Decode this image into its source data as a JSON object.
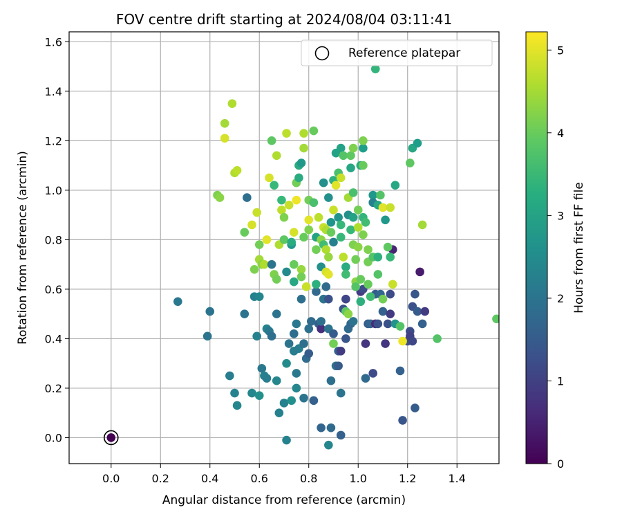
{
  "chart_data": {
    "type": "scatter",
    "title": "FOV centre drift starting at 2024/08/04 03:11:41",
    "xlabel": "Angular distance from reference (arcmin)",
    "ylabel": "Rotation from reference (arcmin)",
    "xlim": [
      -0.17,
      1.57
    ],
    "ylim": [
      -0.105,
      1.64
    ],
    "xticks": [
      "0.0",
      "0.2",
      "0.4",
      "0.6",
      "0.8",
      "1.0",
      "1.2",
      "1.4"
    ],
    "yticks": [
      "0.0",
      "0.2",
      "0.4",
      "0.6",
      "0.8",
      "1.0",
      "1.2",
      "1.4",
      "1.6"
    ],
    "grid": true,
    "legend": {
      "placement": "top-right",
      "entries": [
        "Reference platepar"
      ]
    },
    "colorbar": {
      "label": "Hours from first FF file",
      "range": [
        0,
        5.22
      ],
      "ticks": [
        "0",
        "1",
        "2",
        "3",
        "4",
        "5"
      ],
      "colormap": "viridis"
    },
    "reference_point": {
      "x": 0.0,
      "y": 0.0,
      "c": 0.0
    },
    "points": [
      {
        "x": 0.27,
        "y": 0.55,
        "c": 2.1
      },
      {
        "x": 0.4,
        "y": 0.51,
        "c": 2.0
      },
      {
        "x": 0.39,
        "y": 0.41,
        "c": 2.0
      },
      {
        "x": 0.48,
        "y": 0.25,
        "c": 2.2
      },
      {
        "x": 0.5,
        "y": 0.18,
        "c": 2.3
      },
      {
        "x": 0.51,
        "y": 0.13,
        "c": 2.4
      },
      {
        "x": 0.54,
        "y": 0.5,
        "c": 2.0
      },
      {
        "x": 0.55,
        "y": 0.97,
        "c": 1.9
      },
      {
        "x": 0.57,
        "y": 0.18,
        "c": 2.4
      },
      {
        "x": 0.58,
        "y": 0.57,
        "c": 2.3
      },
      {
        "x": 0.6,
        "y": 0.57,
        "c": 2.4
      },
      {
        "x": 0.59,
        "y": 0.41,
        "c": 2.3
      },
      {
        "x": 0.6,
        "y": 0.17,
        "c": 2.6
      },
      {
        "x": 0.61,
        "y": 0.28,
        "c": 2.1
      },
      {
        "x": 0.62,
        "y": 0.25,
        "c": 2.3
      },
      {
        "x": 0.63,
        "y": 0.24,
        "c": 2.2
      },
      {
        "x": 0.63,
        "y": 0.44,
        "c": 2.3
      },
      {
        "x": 0.64,
        "y": 0.43,
        "c": 2.1
      },
      {
        "x": 0.65,
        "y": 0.41,
        "c": 1.9
      },
      {
        "x": 0.67,
        "y": 0.23,
        "c": 2.4
      },
      {
        "x": 0.67,
        "y": 0.5,
        "c": 2.0
      },
      {
        "x": 0.68,
        "y": 0.1,
        "c": 2.3
      },
      {
        "x": 0.7,
        "y": 0.14,
        "c": 2.3
      },
      {
        "x": 0.71,
        "y": -0.01,
        "c": 2.3
      },
      {
        "x": 0.71,
        "y": 0.3,
        "c": 2.5
      },
      {
        "x": 0.72,
        "y": 0.38,
        "c": 2.0
      },
      {
        "x": 0.73,
        "y": 0.15,
        "c": 2.6
      },
      {
        "x": 0.74,
        "y": 0.42,
        "c": 1.9
      },
      {
        "x": 0.74,
        "y": 0.35,
        "c": 2.2
      },
      {
        "x": 0.75,
        "y": 0.26,
        "c": 2.1
      },
      {
        "x": 0.75,
        "y": 0.2,
        "c": 2.4
      },
      {
        "x": 0.75,
        "y": 0.46,
        "c": 2.1
      },
      {
        "x": 0.76,
        "y": 0.36,
        "c": 2.2
      },
      {
        "x": 0.77,
        "y": 0.56,
        "c": 1.9
      },
      {
        "x": 0.78,
        "y": 0.38,
        "c": 1.9
      },
      {
        "x": 0.78,
        "y": 0.16,
        "c": 2.0
      },
      {
        "x": 0.79,
        "y": 0.32,
        "c": 1.8
      },
      {
        "x": 0.8,
        "y": 0.34,
        "c": 1.5
      },
      {
        "x": 0.8,
        "y": 0.44,
        "c": 1.9
      },
      {
        "x": 0.81,
        "y": 0.47,
        "c": 1.8
      },
      {
        "x": 0.82,
        "y": 0.15,
        "c": 1.6
      },
      {
        "x": 0.83,
        "y": 0.59,
        "c": 1.8
      },
      {
        "x": 0.84,
        "y": 0.46,
        "c": 1.6
      },
      {
        "x": 0.85,
        "y": 0.44,
        "c": 0.7
      },
      {
        "x": 0.85,
        "y": 0.47,
        "c": 1.9
      },
      {
        "x": 0.85,
        "y": 0.04,
        "c": 1.7
      },
      {
        "x": 0.86,
        "y": 0.56,
        "c": 2.0
      },
      {
        "x": 0.87,
        "y": 0.61,
        "c": 1.8
      },
      {
        "x": 0.88,
        "y": 0.56,
        "c": 1.3
      },
      {
        "x": 0.88,
        "y": 0.44,
        "c": 2.0
      },
      {
        "x": 0.89,
        "y": 0.23,
        "c": 1.9
      },
      {
        "x": 0.89,
        "y": 0.04,
        "c": 1.8
      },
      {
        "x": 0.88,
        "y": -0.03,
        "c": 2.4
      },
      {
        "x": 0.9,
        "y": 0.42,
        "c": 1.5
      },
      {
        "x": 0.91,
        "y": 0.29,
        "c": 1.9
      },
      {
        "x": 0.92,
        "y": 0.29,
        "c": 1.5
      },
      {
        "x": 0.92,
        "y": 0.35,
        "c": 1.6
      },
      {
        "x": 0.93,
        "y": 0.18,
        "c": 2.0
      },
      {
        "x": 0.93,
        "y": 0.01,
        "c": 1.6
      },
      {
        "x": 0.93,
        "y": 0.35,
        "c": 0.9
      },
      {
        "x": 0.94,
        "y": 0.52,
        "c": 1.3
      },
      {
        "x": 0.95,
        "y": 0.4,
        "c": 1.4
      },
      {
        "x": 0.95,
        "y": 0.56,
        "c": 1.1
      },
      {
        "x": 0.96,
        "y": 0.44,
        "c": 1.8
      },
      {
        "x": 0.97,
        "y": 0.46,
        "c": 1.7
      },
      {
        "x": 0.98,
        "y": 0.47,
        "c": 2.0
      },
      {
        "x": 1.01,
        "y": 0.59,
        "c": 0.9
      },
      {
        "x": 1.02,
        "y": 0.6,
        "c": 1.2
      },
      {
        "x": 1.03,
        "y": 0.38,
        "c": 0.8
      },
      {
        "x": 1.03,
        "y": 0.24,
        "c": 1.8
      },
      {
        "x": 1.04,
        "y": 0.46,
        "c": 1.5
      },
      {
        "x": 1.05,
        "y": 0.46,
        "c": 1.7
      },
      {
        "x": 1.06,
        "y": 0.26,
        "c": 1.2
      },
      {
        "x": 1.07,
        "y": 0.46,
        "c": 0.6
      },
      {
        "x": 1.07,
        "y": 0.58,
        "c": 1.5
      },
      {
        "x": 1.08,
        "y": 0.46,
        "c": 1.3
      },
      {
        "x": 1.09,
        "y": 0.58,
        "c": 1.7
      },
      {
        "x": 1.1,
        "y": 0.51,
        "c": 1.6
      },
      {
        "x": 1.11,
        "y": 0.38,
        "c": 0.8
      },
      {
        "x": 1.12,
        "y": 0.46,
        "c": 1.3
      },
      {
        "x": 1.13,
        "y": 0.5,
        "c": 0.9
      },
      {
        "x": 1.13,
        "y": 0.58,
        "c": 1.2
      },
      {
        "x": 1.14,
        "y": 0.76,
        "c": 0.5
      },
      {
        "x": 1.15,
        "y": 0.46,
        "c": 2.7
      },
      {
        "x": 1.17,
        "y": 0.27,
        "c": 1.6
      },
      {
        "x": 1.18,
        "y": 0.07,
        "c": 1.4
      },
      {
        "x": 1.2,
        "y": 0.39,
        "c": 1.3
      },
      {
        "x": 1.21,
        "y": 0.43,
        "c": 1.2
      },
      {
        "x": 1.21,
        "y": 0.41,
        "c": 1.0
      },
      {
        "x": 1.22,
        "y": 0.53,
        "c": 1.3
      },
      {
        "x": 1.22,
        "y": 0.39,
        "c": 1.1
      },
      {
        "x": 1.23,
        "y": 0.58,
        "c": 1.4
      },
      {
        "x": 1.23,
        "y": 0.12,
        "c": 1.5
      },
      {
        "x": 1.24,
        "y": 0.51,
        "c": 1.5
      },
      {
        "x": 1.25,
        "y": 0.67,
        "c": 0.4
      },
      {
        "x": 1.26,
        "y": 0.46,
        "c": 1.6
      },
      {
        "x": 1.27,
        "y": 0.51,
        "c": 0.9
      },
      {
        "x": 0.43,
        "y": 0.98,
        "c": 4.2
      },
      {
        "x": 0.44,
        "y": 0.97,
        "c": 4.3
      },
      {
        "x": 0.46,
        "y": 1.27,
        "c": 4.5
      },
      {
        "x": 0.46,
        "y": 1.21,
        "c": 4.9
      },
      {
        "x": 0.49,
        "y": 1.35,
        "c": 4.6
      },
      {
        "x": 0.5,
        "y": 1.07,
        "c": 4.6
      },
      {
        "x": 0.51,
        "y": 1.08,
        "c": 4.7
      },
      {
        "x": 0.54,
        "y": 0.83,
        "c": 4.0
      },
      {
        "x": 0.57,
        "y": 0.86,
        "c": 4.9
      },
      {
        "x": 0.58,
        "y": 0.68,
        "c": 4.2
      },
      {
        "x": 0.59,
        "y": 0.91,
        "c": 4.8
      },
      {
        "x": 0.6,
        "y": 0.78,
        "c": 4.1
      },
      {
        "x": 0.6,
        "y": 0.72,
        "c": 4.5
      },
      {
        "x": 0.61,
        "y": 0.7,
        "c": 4.3
      },
      {
        "x": 0.62,
        "y": 0.7,
        "c": 4.6
      },
      {
        "x": 0.63,
        "y": 0.8,
        "c": 5.0
      },
      {
        "x": 0.64,
        "y": 1.05,
        "c": 4.9
      },
      {
        "x": 0.65,
        "y": 1.2,
        "c": 3.9
      },
      {
        "x": 0.65,
        "y": 0.7,
        "c": 2.0
      },
      {
        "x": 0.66,
        "y": 1.02,
        "c": 3.5
      },
      {
        "x": 0.66,
        "y": 0.66,
        "c": 4.2
      },
      {
        "x": 0.67,
        "y": 1.14,
        "c": 4.6
      },
      {
        "x": 0.67,
        "y": 0.64,
        "c": 4.1
      },
      {
        "x": 0.68,
        "y": 0.78,
        "c": 4.6
      },
      {
        "x": 0.69,
        "y": 0.92,
        "c": 4.7
      },
      {
        "x": 0.69,
        "y": 0.96,
        "c": 3.5
      },
      {
        "x": 0.7,
        "y": 0.8,
        "c": 3.9
      },
      {
        "x": 0.7,
        "y": 0.89,
        "c": 4.2
      },
      {
        "x": 0.71,
        "y": 1.23,
        "c": 4.7
      },
      {
        "x": 0.71,
        "y": 0.67,
        "c": 2.5
      },
      {
        "x": 0.72,
        "y": 0.94,
        "c": 4.8
      },
      {
        "x": 0.73,
        "y": 0.78,
        "c": 2.7
      },
      {
        "x": 0.73,
        "y": 0.79,
        "c": 3.2
      },
      {
        "x": 0.74,
        "y": 0.83,
        "c": 4.9
      },
      {
        "x": 0.74,
        "y": 0.7,
        "c": 4.0
      },
      {
        "x": 0.74,
        "y": 0.63,
        "c": 3.1
      },
      {
        "x": 0.75,
        "y": 1.03,
        "c": 4.1
      },
      {
        "x": 0.75,
        "y": 0.96,
        "c": 5.1
      },
      {
        "x": 0.76,
        "y": 1.1,
        "c": 3.2
      },
      {
        "x": 0.76,
        "y": 1.05,
        "c": 3.2
      },
      {
        "x": 0.77,
        "y": 1.11,
        "c": 2.8
      },
      {
        "x": 0.77,
        "y": 0.68,
        "c": 4.4
      },
      {
        "x": 0.77,
        "y": 0.65,
        "c": 4.1
      },
      {
        "x": 0.78,
        "y": 0.81,
        "c": 4.0
      },
      {
        "x": 0.78,
        "y": 1.17,
        "c": 4.5
      },
      {
        "x": 0.78,
        "y": 1.23,
        "c": 4.6
      },
      {
        "x": 0.79,
        "y": 0.61,
        "c": 4.8
      },
      {
        "x": 0.8,
        "y": 0.88,
        "c": 5.0
      },
      {
        "x": 0.8,
        "y": 0.84,
        "c": 4.2
      },
      {
        "x": 0.8,
        "y": 0.96,
        "c": 4.1
      },
      {
        "x": 0.82,
        "y": 0.95,
        "c": 3.7
      },
      {
        "x": 0.82,
        "y": 1.24,
        "c": 4.0
      },
      {
        "x": 0.83,
        "y": 0.81,
        "c": 3.0
      },
      {
        "x": 0.83,
        "y": 0.76,
        "c": 4.1
      },
      {
        "x": 0.83,
        "y": 0.62,
        "c": 3.3
      },
      {
        "x": 0.84,
        "y": 0.89,
        "c": 4.7
      },
      {
        "x": 0.85,
        "y": 0.69,
        "c": 2.6
      },
      {
        "x": 0.85,
        "y": 0.8,
        "c": 4.3
      },
      {
        "x": 0.86,
        "y": 1.03,
        "c": 2.6
      },
      {
        "x": 0.86,
        "y": 0.78,
        "c": 3.6
      },
      {
        "x": 0.86,
        "y": 0.85,
        "c": 4.8
      },
      {
        "x": 0.87,
        "y": 0.84,
        "c": 4.6
      },
      {
        "x": 0.87,
        "y": 0.76,
        "c": 4.6
      },
      {
        "x": 0.87,
        "y": 0.67,
        "c": 4.9
      },
      {
        "x": 0.88,
        "y": 0.97,
        "c": 2.6
      },
      {
        "x": 0.88,
        "y": 0.73,
        "c": 4.4
      },
      {
        "x": 0.88,
        "y": 0.66,
        "c": 5.0
      },
      {
        "x": 0.89,
        "y": 0.87,
        "c": 2.7
      },
      {
        "x": 0.89,
        "y": 0.83,
        "c": 4.0
      },
      {
        "x": 0.9,
        "y": 1.04,
        "c": 3.3
      },
      {
        "x": 0.9,
        "y": 0.92,
        "c": 4.8
      },
      {
        "x": 0.9,
        "y": 0.79,
        "c": 2.3
      },
      {
        "x": 0.9,
        "y": 0.38,
        "c": 4.1
      },
      {
        "x": 0.91,
        "y": 1.02,
        "c": 5.0
      },
      {
        "x": 0.91,
        "y": 1.15,
        "c": 3.0
      },
      {
        "x": 0.92,
        "y": 1.07,
        "c": 3.7
      },
      {
        "x": 0.92,
        "y": 0.89,
        "c": 2.7
      },
      {
        "x": 0.93,
        "y": 1.05,
        "c": 4.8
      },
      {
        "x": 0.93,
        "y": 0.81,
        "c": 3.5
      },
      {
        "x": 0.93,
        "y": 1.17,
        "c": 3.0
      },
      {
        "x": 0.93,
        "y": 0.86,
        "c": 3.5
      },
      {
        "x": 0.94,
        "y": 1.14,
        "c": 3.8
      },
      {
        "x": 0.94,
        "y": 0.73,
        "c": 4.7
      },
      {
        "x": 0.95,
        "y": 0.69,
        "c": 3.2
      },
      {
        "x": 0.95,
        "y": 0.66,
        "c": 3.6
      },
      {
        "x": 0.95,
        "y": 0.51,
        "c": 3.9
      },
      {
        "x": 0.96,
        "y": 0.97,
        "c": 4.5
      },
      {
        "x": 0.96,
        "y": 0.9,
        "c": 2.6
      },
      {
        "x": 0.96,
        "y": 0.5,
        "c": 4.3
      },
      {
        "x": 0.97,
        "y": 1.09,
        "c": 3.1
      },
      {
        "x": 0.97,
        "y": 1.14,
        "c": 3.9
      },
      {
        "x": 0.97,
        "y": 0.84,
        "c": 3.5
      },
      {
        "x": 0.98,
        "y": 1.17,
        "c": 4.2
      },
      {
        "x": 0.98,
        "y": 0.99,
        "c": 3.7
      },
      {
        "x": 0.98,
        "y": 0.89,
        "c": 3.0
      },
      {
        "x": 0.98,
        "y": 0.78,
        "c": 4.2
      },
      {
        "x": 0.99,
        "y": 0.72,
        "c": 4.1
      },
      {
        "x": 0.99,
        "y": 0.63,
        "c": 4.3
      },
      {
        "x": 0.99,
        "y": 0.61,
        "c": 3.8
      },
      {
        "x": 1.0,
        "y": 0.92,
        "c": 4.1
      },
      {
        "x": 1.0,
        "y": 0.85,
        "c": 4.6
      },
      {
        "x": 1.0,
        "y": 0.77,
        "c": 4.3
      },
      {
        "x": 1.01,
        "y": 1.1,
        "c": 3.2
      },
      {
        "x": 1.01,
        "y": 0.64,
        "c": 4.0
      },
      {
        "x": 1.01,
        "y": 0.55,
        "c": 3.3
      },
      {
        "x": 1.02,
        "y": 1.17,
        "c": 2.9
      },
      {
        "x": 1.02,
        "y": 1.2,
        "c": 4.2
      },
      {
        "x": 1.02,
        "y": 1.1,
        "c": 4.0
      },
      {
        "x": 1.02,
        "y": 0.89,
        "c": 3.4
      },
      {
        "x": 1.02,
        "y": 0.82,
        "c": 4.2
      },
      {
        "x": 1.03,
        "y": 0.87,
        "c": 3.6
      },
      {
        "x": 1.04,
        "y": 0.76,
        "c": 4.2
      },
      {
        "x": 1.04,
        "y": 0.71,
        "c": 4.1
      },
      {
        "x": 1.04,
        "y": 0.62,
        "c": 4.0
      },
      {
        "x": 1.05,
        "y": 0.57,
        "c": 3.6
      },
      {
        "x": 1.06,
        "y": 0.98,
        "c": 2.8
      },
      {
        "x": 1.06,
        "y": 0.95,
        "c": 2.3
      },
      {
        "x": 1.06,
        "y": 0.73,
        "c": 3.8
      },
      {
        "x": 1.07,
        "y": 1.49,
        "c": 3.4
      },
      {
        "x": 1.08,
        "y": 0.73,
        "c": 3.3
      },
      {
        "x": 1.08,
        "y": 0.94,
        "c": 3.1
      },
      {
        "x": 1.08,
        "y": 0.66,
        "c": 3.8
      },
      {
        "x": 1.09,
        "y": 0.98,
        "c": 3.8
      },
      {
        "x": 1.1,
        "y": 0.93,
        "c": 5.0
      },
      {
        "x": 1.1,
        "y": 0.56,
        "c": 4.1
      },
      {
        "x": 1.11,
        "y": 0.88,
        "c": 2.8
      },
      {
        "x": 1.12,
        "y": 0.77,
        "c": 3.9
      },
      {
        "x": 1.13,
        "y": 0.93,
        "c": 4.8
      },
      {
        "x": 1.13,
        "y": 0.73,
        "c": 3.5
      },
      {
        "x": 1.14,
        "y": 0.62,
        "c": 4.8
      },
      {
        "x": 1.15,
        "y": 1.02,
        "c": 3.1
      },
      {
        "x": 1.17,
        "y": 0.45,
        "c": 3.8
      },
      {
        "x": 1.18,
        "y": 0.39,
        "c": 5.1
      },
      {
        "x": 1.21,
        "y": 1.11,
        "c": 3.9
      },
      {
        "x": 1.22,
        "y": 1.17,
        "c": 3.1
      },
      {
        "x": 1.24,
        "y": 1.19,
        "c": 2.9
      },
      {
        "x": 1.26,
        "y": 0.86,
        "c": 4.5
      },
      {
        "x": 1.32,
        "y": 0.4,
        "c": 3.8
      },
      {
        "x": 1.56,
        "y": 0.48,
        "c": 3.9
      }
    ]
  }
}
